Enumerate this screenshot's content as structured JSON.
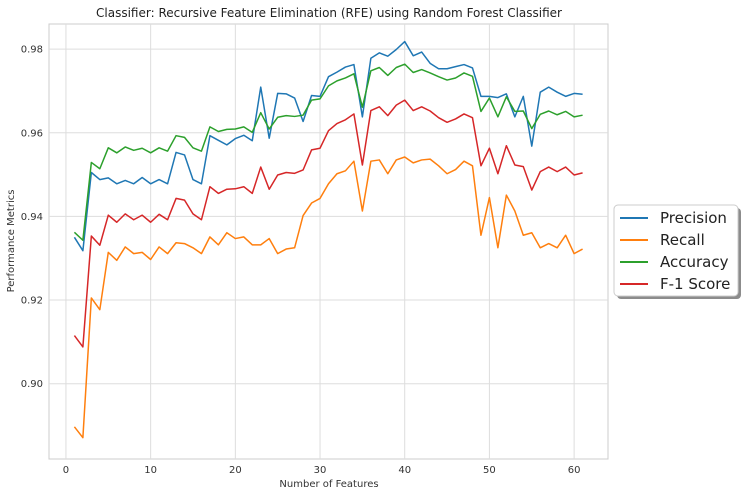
{
  "chart_data": {
    "type": "line",
    "title": "Classifier: Recursive Feature Elimination (RFE) using Random Forest Classifier",
    "xlabel": "Number of Features",
    "ylabel": "Performance Metrics",
    "xlim": [
      -2,
      64
    ],
    "ylim": [
      0.882,
      0.986
    ],
    "xticks": [
      0,
      10,
      20,
      30,
      40,
      50,
      60
    ],
    "yticks": [
      0.9,
      0.92,
      0.94,
      0.96,
      0.98
    ],
    "xtick_labels": [
      "0",
      "10",
      "20",
      "30",
      "40",
      "50",
      "60"
    ],
    "ytick_labels": [
      "0.90",
      "0.92",
      "0.94",
      "0.96",
      "0.98"
    ],
    "grid": true,
    "legend_position": "center-right",
    "x": [
      1,
      2,
      3,
      4,
      5,
      6,
      7,
      8,
      9,
      10,
      11,
      12,
      13,
      14,
      15,
      16,
      17,
      18,
      19,
      20,
      21,
      22,
      23,
      24,
      25,
      26,
      27,
      28,
      29,
      30,
      31,
      32,
      33,
      34,
      35,
      36,
      37,
      38,
      39,
      40,
      41,
      42,
      43,
      44,
      45,
      46,
      47,
      48,
      49,
      50,
      51,
      52,
      53,
      54,
      55,
      56,
      57,
      58,
      59,
      60,
      61
    ],
    "series": [
      {
        "name": "Precision",
        "color": "#1f77b4",
        "values": [
          0.935,
          0.9318,
          0.9505,
          0.9488,
          0.9492,
          0.9478,
          0.9486,
          0.9478,
          0.9493,
          0.9478,
          0.9488,
          0.9478,
          0.9553,
          0.9547,
          0.9488,
          0.9478,
          0.9593,
          0.9582,
          0.9571,
          0.9586,
          0.9594,
          0.9581,
          0.9709,
          0.9587,
          0.9694,
          0.9693,
          0.9683,
          0.9627,
          0.9689,
          0.9687,
          0.9734,
          0.9745,
          0.9757,
          0.9763,
          0.9638,
          0.9778,
          0.9791,
          0.9783,
          0.9799,
          0.9818,
          0.9784,
          0.9793,
          0.9766,
          0.9753,
          0.9753,
          0.9758,
          0.9763,
          0.9755,
          0.9687,
          0.9687,
          0.9684,
          0.9693,
          0.9638,
          0.9687,
          0.9568,
          0.9697,
          0.9709,
          0.9697,
          0.9687,
          0.9694,
          0.9692
        ]
      },
      {
        "name": "Recall",
        "color": "#ff7f0e",
        "values": [
          0.8897,
          0.8871,
          0.9205,
          0.9177,
          0.9314,
          0.9295,
          0.9327,
          0.9311,
          0.9314,
          0.9297,
          0.9327,
          0.9311,
          0.9337,
          0.9335,
          0.9325,
          0.9311,
          0.9351,
          0.9332,
          0.9361,
          0.9347,
          0.9351,
          0.9332,
          0.9332,
          0.9347,
          0.9311,
          0.9322,
          0.9325,
          0.9402,
          0.9432,
          0.9443,
          0.9478,
          0.9502,
          0.9509,
          0.9532,
          0.9413,
          0.9532,
          0.9535,
          0.9502,
          0.9535,
          0.9542,
          0.9528,
          0.9535,
          0.9537,
          0.9521,
          0.9502,
          0.9512,
          0.9532,
          0.9521,
          0.9355,
          0.9445,
          0.9325,
          0.9451,
          0.9413,
          0.9355,
          0.9361,
          0.9325,
          0.9335,
          0.9325,
          0.9355,
          0.9311,
          0.9322
        ]
      },
      {
        "name": "Accuracy",
        "color": "#2ca02c",
        "values": [
          0.9362,
          0.9343,
          0.9529,
          0.9514,
          0.9564,
          0.9552,
          0.9566,
          0.9558,
          0.9563,
          0.9552,
          0.9564,
          0.9556,
          0.9593,
          0.9589,
          0.9564,
          0.9556,
          0.9614,
          0.9603,
          0.9608,
          0.9609,
          0.9614,
          0.9601,
          0.9648,
          0.9609,
          0.9637,
          0.9641,
          0.9639,
          0.9642,
          0.9678,
          0.9681,
          0.9712,
          0.9724,
          0.9731,
          0.9741,
          0.9661,
          0.9748,
          0.9756,
          0.9737,
          0.9756,
          0.9764,
          0.9744,
          0.9751,
          0.9743,
          0.9734,
          0.9726,
          0.9731,
          0.9743,
          0.9735,
          0.9651,
          0.9683,
          0.9638,
          0.9686,
          0.9651,
          0.9652,
          0.961,
          0.9644,
          0.9652,
          0.9643,
          0.9651,
          0.9638,
          0.9642
        ]
      },
      {
        "name": "F-1 Score",
        "color": "#d62728",
        "values": [
          0.9115,
          0.9088,
          0.9353,
          0.9331,
          0.9403,
          0.9386,
          0.9406,
          0.9392,
          0.9403,
          0.9386,
          0.9405,
          0.9392,
          0.9443,
          0.9439,
          0.9406,
          0.9392,
          0.9471,
          0.9455,
          0.9465,
          0.9466,
          0.9471,
          0.9455,
          0.9518,
          0.9465,
          0.9499,
          0.9505,
          0.9503,
          0.9511,
          0.9559,
          0.9563,
          0.9605,
          0.9622,
          0.9631,
          0.9645,
          0.9523,
          0.9653,
          0.9662,
          0.9641,
          0.9666,
          0.9678,
          0.9653,
          0.9662,
          0.9652,
          0.9636,
          0.9625,
          0.9633,
          0.9645,
          0.9636,
          0.9521,
          0.9563,
          0.9502,
          0.9569,
          0.9523,
          0.9519,
          0.9463,
          0.9507,
          0.9518,
          0.9507,
          0.9518,
          0.9499,
          0.9504
        ]
      }
    ]
  }
}
